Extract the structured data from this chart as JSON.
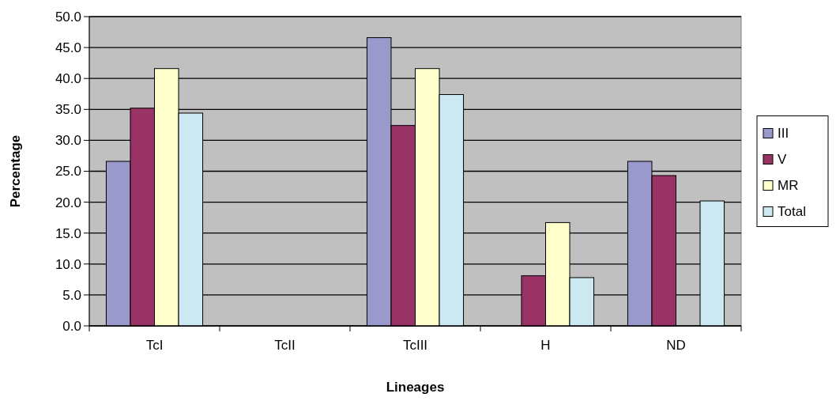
{
  "chart_data": {
    "type": "bar",
    "xlabel": "Lineages",
    "ylabel": "Percentage",
    "categories": [
      "TcI",
      "TcII",
      "TcIII",
      "H",
      "ND"
    ],
    "series": [
      {
        "name": "III",
        "color": "#9999cc",
        "values": [
          26.6,
          0,
          46.6,
          0,
          26.6
        ]
      },
      {
        "name": "V",
        "color": "#993366",
        "values": [
          35.2,
          0,
          32.4,
          8.1,
          24.3
        ]
      },
      {
        "name": "MR",
        "color": "#ffffcc",
        "values": [
          41.6,
          0,
          41.6,
          16.7,
          0
        ]
      },
      {
        "name": "Total",
        "color": "#cce8f0",
        "values": [
          34.4,
          0,
          37.4,
          7.8,
          20.2
        ]
      }
    ],
    "ylim": [
      0,
      50
    ],
    "yticks": [
      {
        "value": 0,
        "label": "0.0"
      },
      {
        "value": 5,
        "label": "5.0"
      },
      {
        "value": 10,
        "label": "10.0"
      },
      {
        "value": 15,
        "label": "15.0"
      },
      {
        "value": 20,
        "label": "20.0"
      },
      {
        "value": 25,
        "label": "25.0"
      },
      {
        "value": 30,
        "label": "30.0"
      },
      {
        "value": 35,
        "label": "35.0"
      },
      {
        "value": 40,
        "label": "40.0"
      },
      {
        "value": 45,
        "label": "45.0"
      },
      {
        "value": 50,
        "label": "50.0"
      }
    ],
    "grid": "y",
    "legend": "right"
  }
}
